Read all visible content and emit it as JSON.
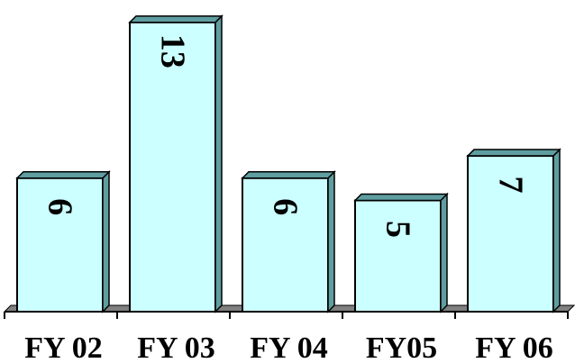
{
  "chart_data": {
    "type": "bar",
    "categories": [
      "FY 02",
      "FY 03",
      "FY 04",
      "FY05",
      "FY 06"
    ],
    "values": [
      6,
      13,
      6,
      5,
      7
    ],
    "ylim": [
      0,
      13.6
    ],
    "grid": false,
    "legend": "none",
    "colors": {
      "bar_fill": "#ccffff",
      "bar_side": "#5f9ea0",
      "bar_outline": "#000000",
      "floor": "#808080"
    }
  }
}
